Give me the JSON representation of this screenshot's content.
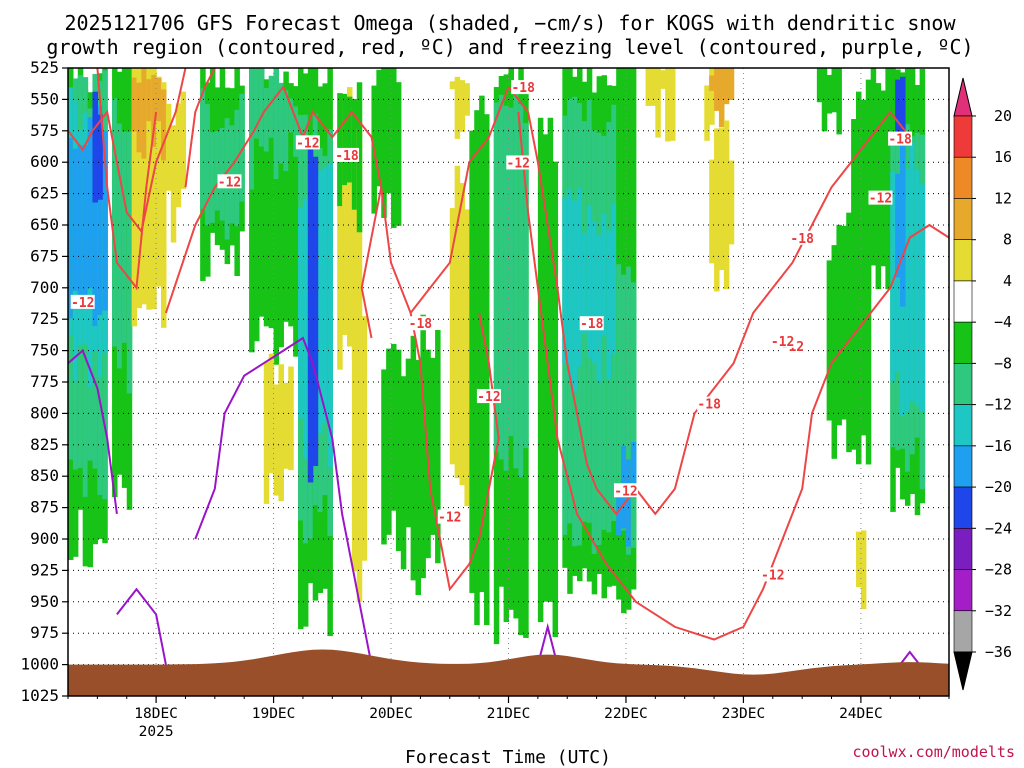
{
  "title_line1": "2025121706 GFS Forecast Omega (shaded, −cm/s) for KOGS with dendritic snow",
  "title_line2": "growth region (contoured, red, ºC) and freezing level (contoured, purple, ºC)",
  "credit": "coolwx.com/modelts",
  "chart_data": {
    "type": "heatmap",
    "title": "2025121706 GFS Forecast Omega (shaded, −cm/s) for KOGS with dendritic snow growth region (contoured, red, ºC) and freezing level (contoured, purple, ºC)",
    "xlabel": "Forecast Time (UTC)",
    "ylabel": "",
    "y_axis": {
      "ticks": [
        525,
        550,
        575,
        600,
        625,
        650,
        675,
        700,
        725,
        750,
        775,
        800,
        825,
        850,
        875,
        900,
        925,
        950,
        975,
        1000,
        1025
      ],
      "range": [
        525,
        1025
      ],
      "inverted": true
    },
    "x_axis": {
      "ticks": [
        {
          "label": "18DEC",
          "sub": "2025",
          "hour": 18
        },
        {
          "label": "19DEC",
          "sub": "",
          "hour": 42
        },
        {
          "label": "20DEC",
          "sub": "",
          "hour": 66
        },
        {
          "label": "21DEC",
          "sub": "",
          "hour": 90
        },
        {
          "label": "22DEC",
          "sub": "",
          "hour": 114
        },
        {
          "label": "23DEC",
          "sub": "",
          "hour": 138
        },
        {
          "label": "24DEC",
          "sub": "",
          "hour": 162
        }
      ],
      "range_hours": [
        0,
        180
      ]
    },
    "grid": true,
    "colorbar": {
      "labels": [
        "20",
        "16",
        "12",
        "8",
        "4",
        "−4",
        "−8",
        "−12",
        "−16",
        "−20",
        "−24",
        "−28",
        "−32",
        "−36"
      ],
      "colors": [
        "#e0307a",
        "#ee3b3a",
        "#ed8a25",
        "#e6a92c",
        "#e4dc32",
        "#ffffff",
        "#16c316",
        "#2ec87e",
        "#1ec7c3",
        "#1e9ff0",
        "#1e46e8",
        "#7a1ec0",
        "#a41ec8",
        "#a6a6a6",
        "#000000"
      ],
      "open_ends": true
    },
    "contour_labels": [
      {
        "text": "-12",
        "hour": 3,
        "p": 712
      },
      {
        "text": "-12",
        "hour": 33,
        "p": 616
      },
      {
        "text": "-12",
        "hour": 49,
        "p": 585
      },
      {
        "text": "-18",
        "hour": 57,
        "p": 595
      },
      {
        "text": "-18",
        "hour": 72,
        "p": 729
      },
      {
        "text": "-12",
        "hour": 86,
        "p": 787
      },
      {
        "text": "-12",
        "hour": 78,
        "p": 883
      },
      {
        "text": "-18",
        "hour": 93,
        "p": 541
      },
      {
        "text": "-12",
        "hour": 92,
        "p": 601
      },
      {
        "text": "-18",
        "hour": 107,
        "p": 729
      },
      {
        "text": "-12",
        "hour": 114,
        "p": 862
      },
      {
        "text": "-18",
        "hour": 131,
        "p": 793
      },
      {
        "text": "-12",
        "hour": 144,
        "p": 929
      },
      {
        "text": "-12",
        "hour": 148,
        "p": 747
      },
      {
        "text": "-18",
        "hour": 150,
        "p": 661
      },
      {
        "text": "-12",
        "hour": 166,
        "p": 629
      },
      {
        "text": "-18",
        "hour": 170,
        "p": 582
      },
      {
        "text": "-12",
        "hour": 146,
        "p": 743
      }
    ]
  }
}
